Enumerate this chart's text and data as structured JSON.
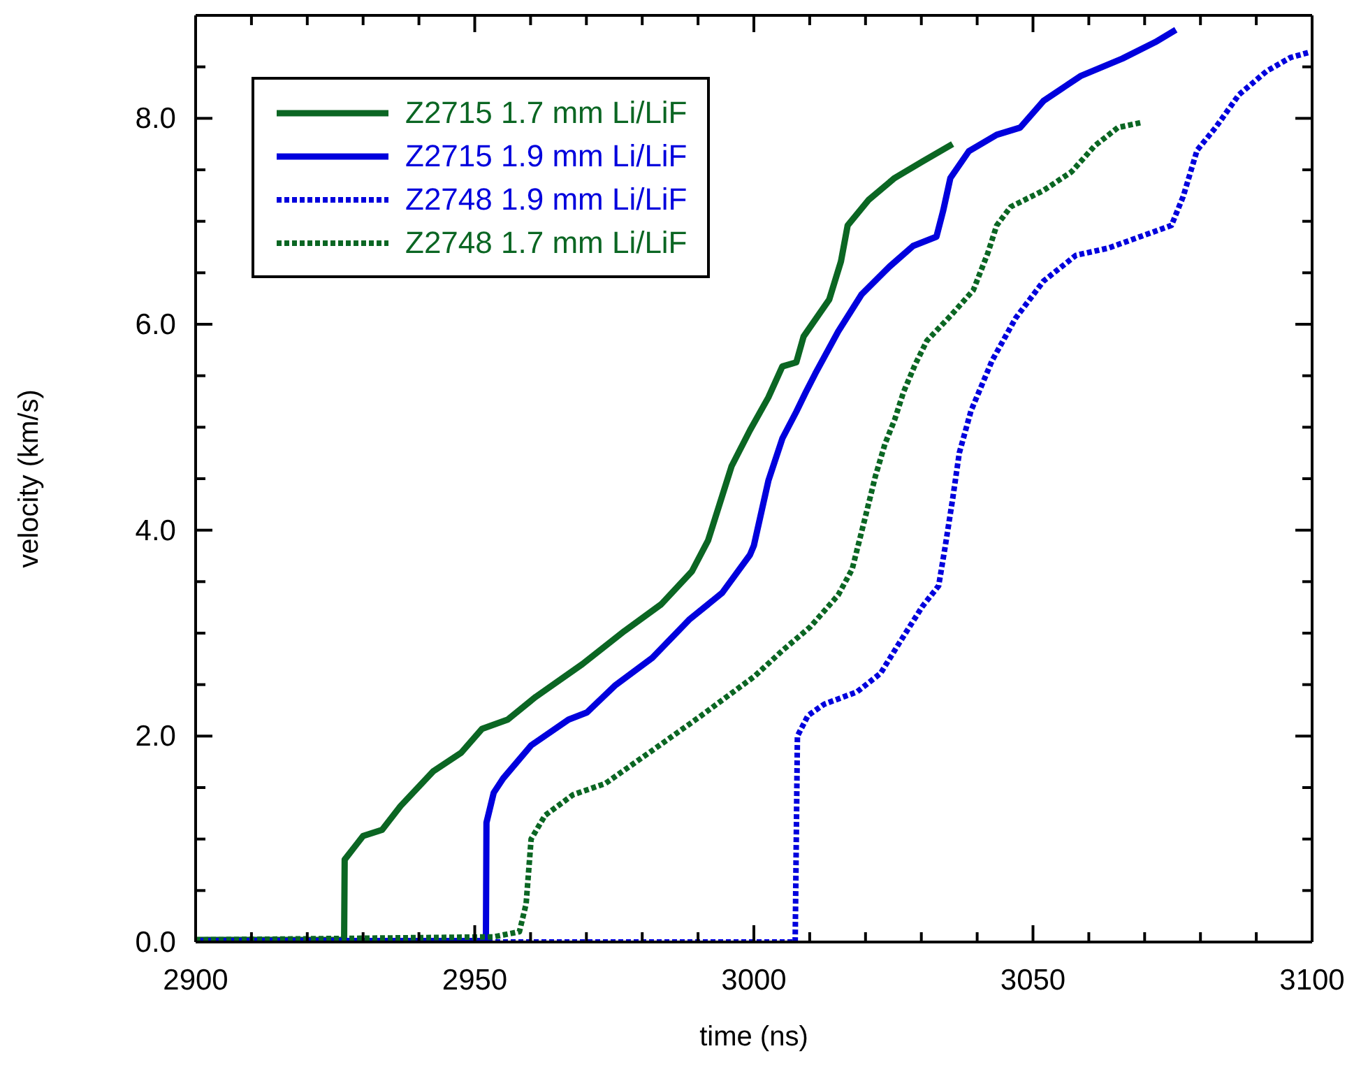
{
  "chart_data": {
    "type": "line",
    "xlabel": "time (ns)",
    "ylabel": "velocity (km/s)",
    "xlim": [
      2900,
      3100
    ],
    "xticks": [
      {
        "value": 2900,
        "label": "2900"
      },
      {
        "value": 2910,
        "label": null
      },
      {
        "value": 2920,
        "label": null
      },
      {
        "value": 2930,
        "label": null
      },
      {
        "value": 2940,
        "label": null
      },
      {
        "value": 2950,
        "label": "2950"
      },
      {
        "value": 2960,
        "label": null
      },
      {
        "value": 2970,
        "label": null
      },
      {
        "value": 2980,
        "label": null
      },
      {
        "value": 2990,
        "label": null
      },
      {
        "value": 3000,
        "label": "3000"
      },
      {
        "value": 3010,
        "label": null
      },
      {
        "value": 3020,
        "label": null
      },
      {
        "value": 3030,
        "label": null
      },
      {
        "value": 3040,
        "label": null
      },
      {
        "value": 3050,
        "label": "3050"
      },
      {
        "value": 3060,
        "label": null
      },
      {
        "value": 3070,
        "label": null
      },
      {
        "value": 3080,
        "label": null
      },
      {
        "value": 3090,
        "label": null
      },
      {
        "value": 3100,
        "label": "3100"
      }
    ],
    "ylim": [
      0,
      9
    ],
    "yticks": [
      {
        "value": 0,
        "label": "0.0"
      },
      {
        "value": 0.5,
        "label": null
      },
      {
        "value": 1,
        "label": null
      },
      {
        "value": 1.5,
        "label": null
      },
      {
        "value": 2,
        "label": "2.0"
      },
      {
        "value": 2.5,
        "label": null
      },
      {
        "value": 3,
        "label": null
      },
      {
        "value": 3.5,
        "label": null
      },
      {
        "value": 4,
        "label": "4.0"
      },
      {
        "value": 4.5,
        "label": null
      },
      {
        "value": 5,
        "label": null
      },
      {
        "value": 5.5,
        "label": null
      },
      {
        "value": 6,
        "label": "6.0"
      },
      {
        "value": 6.5,
        "label": null
      },
      {
        "value": 7,
        "label": null
      },
      {
        "value": 7.5,
        "label": null
      },
      {
        "value": 8,
        "label": "8.0"
      },
      {
        "value": 8.5,
        "label": null
      },
      {
        "value": 9,
        "label": null
      }
    ],
    "grid": false,
    "legend": "top left",
    "marker": "none",
    "series": [
      {
        "name": "Z2715 1.7 mm Li/LiF",
        "color": "#0b6623",
        "line_style": "solid",
        "x": [
          2900,
          2926.6,
          2926.7,
          2930.0,
          2933.4,
          2936.7,
          2942.6,
          2947.6,
          2951.3,
          2955.9,
          2960.9,
          2969.3,
          2976.8,
          2983.4,
          2988.9,
          2991.8,
          2996.0,
          2999.3,
          3002.6,
          3005.1,
          3007.6,
          3008.9,
          3013.5,
          3015.6,
          3016.8,
          3020.6,
          3025.2,
          3030.2,
          3035.6
        ],
        "values": [
          0.02,
          0.02,
          0.8,
          1.03,
          1.09,
          1.32,
          1.66,
          1.84,
          2.07,
          2.16,
          2.38,
          2.7,
          3.02,
          3.28,
          3.6,
          3.9,
          4.62,
          4.97,
          5.29,
          5.59,
          5.63,
          5.88,
          6.24,
          6.61,
          6.96,
          7.21,
          7.42,
          7.58,
          7.75
        ]
      },
      {
        "name": "Z2715 1.9 mm Li/LiF",
        "color": "#0000dd",
        "line_style": "solid",
        "x": [
          2900,
          2952.0,
          2952.1,
          2953.4,
          2955.1,
          2960.1,
          2966.8,
          2970.1,
          2975.1,
          2981.8,
          2988.4,
          2994.3,
          2999.3,
          3000.0,
          3002.6,
          3005.1,
          3007.6,
          3009.3,
          3011.0,
          3015.1,
          3019.3,
          3024.3,
          3028.5,
          3032.7,
          3033.9,
          3035.2,
          3038.5,
          3043.5,
          3047.7,
          3051.9,
          3058.5,
          3066.0,
          3071.9,
          3075.6
        ],
        "values": [
          0.01,
          0.01,
          1.16,
          1.45,
          1.59,
          1.91,
          2.16,
          2.23,
          2.49,
          2.76,
          3.13,
          3.39,
          3.76,
          3.85,
          4.48,
          4.89,
          5.15,
          5.34,
          5.52,
          5.93,
          6.29,
          6.56,
          6.76,
          6.85,
          7.1,
          7.42,
          7.68,
          7.84,
          7.91,
          8.17,
          8.41,
          8.58,
          8.74,
          8.86
        ]
      },
      {
        "name": "Z2748 1.9 mm Li/LiF",
        "color": "#0000dd",
        "line_style": "dotted",
        "x": [
          2900,
          3007.4,
          3007.8,
          3009.7,
          3012.6,
          3018.5,
          3022.7,
          3026.0,
          3030.2,
          3033.1,
          3034.3,
          3035.6,
          3036.8,
          3038.9,
          3042.7,
          3046.9,
          3051.9,
          3057.7,
          3063.5,
          3070.2,
          3074.8,
          3076.9,
          3079.4,
          3082.7,
          3086.9,
          3091.9,
          3096.1,
          3099.4
        ],
        "values": [
          0,
          0,
          2.0,
          2.2,
          2.31,
          2.43,
          2.61,
          2.9,
          3.26,
          3.46,
          3.85,
          4.3,
          4.75,
          5.16,
          5.65,
          6.06,
          6.42,
          6.67,
          6.74,
          6.87,
          6.96,
          7.24,
          7.69,
          7.91,
          8.23,
          8.46,
          8.59,
          8.64
        ]
      },
      {
        "name": "Z2748 1.7 mm Li/LiF",
        "color": "#0b6623",
        "line_style": "dotted",
        "x": [
          2900,
          2953.4,
          2958.0,
          2959.2,
          2960.1,
          2962.6,
          2967.6,
          2973.4,
          2981.8,
          2990.1,
          3000.1,
          3005.1,
          3010.1,
          3015.1,
          3017.6,
          3019.7,
          3021.8,
          3023.5,
          3025.2,
          3026.8,
          3028.9,
          3031.0,
          3035.2,
          3039.3,
          3041.9,
          3043.5,
          3046.0,
          3051.9,
          3056.9,
          3061.0,
          3065.2,
          3069.4
        ],
        "values": [
          0.02,
          0.05,
          0.1,
          0.37,
          1.0,
          1.23,
          1.43,
          1.54,
          1.86,
          2.18,
          2.58,
          2.83,
          3.06,
          3.37,
          3.62,
          4.07,
          4.53,
          4.84,
          5.07,
          5.34,
          5.61,
          5.84,
          6.08,
          6.33,
          6.69,
          6.96,
          7.14,
          7.3,
          7.48,
          7.73,
          7.91,
          7.96
        ]
      }
    ]
  }
}
